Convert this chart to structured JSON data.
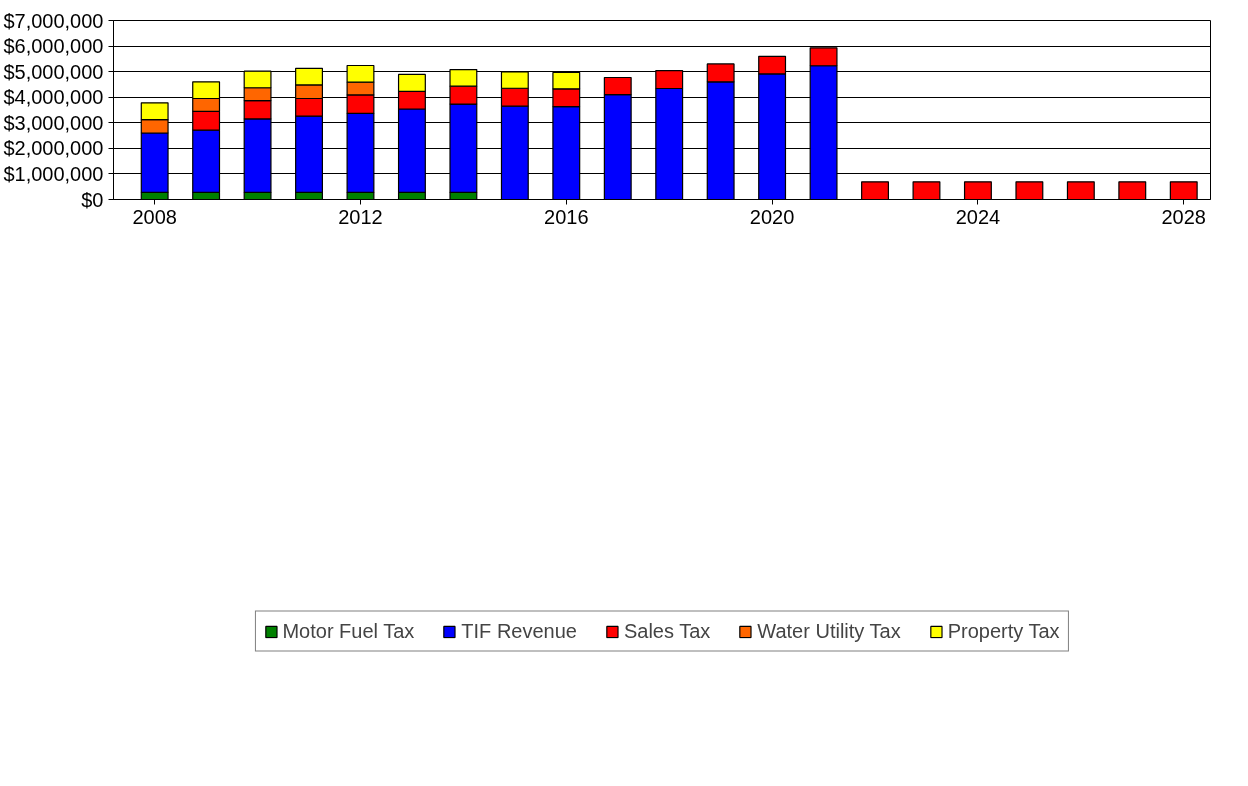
{
  "chart_data": {
    "type": "bar",
    "stacked": true,
    "categories": [
      "2008",
      null,
      null,
      null,
      "2012",
      null,
      null,
      null,
      "2016",
      null,
      null,
      null,
      "2020",
      null,
      null,
      null,
      "2024",
      null,
      null,
      null,
      "2028"
    ],
    "series": [
      {
        "name": "Motor Fuel Tax",
        "color": "#008000",
        "values": [
          280000,
          280000,
          280000,
          280000,
          280000,
          280000,
          280000,
          null,
          null,
          null,
          null,
          null,
          null,
          null,
          null,
          null,
          null,
          null,
          null,
          null,
          null
        ]
      },
      {
        "name": "TIF Revenue",
        "color": "#0000ff",
        "values": [
          2320000,
          2430000,
          2870000,
          2980000,
          3090000,
          3260000,
          3450000,
          3650000,
          3630000,
          4100000,
          4340000,
          4600000,
          4910000,
          5230000,
          null,
          null,
          null,
          null,
          null,
          null,
          null
        ]
      },
      {
        "name": "Sales Tax",
        "color": "#ff0000",
        "values": [
          null,
          740000,
          720000,
          690000,
          720000,
          690000,
          700000,
          700000,
          700000,
          670000,
          700000,
          700000,
          690000,
          700000,
          690000,
          690000,
          690000,
          690000,
          690000,
          690000,
          690000
        ]
      },
      {
        "name": "Water Utility Tax",
        "color": "#ff6600",
        "values": [
          520000,
          500000,
          500000,
          530000,
          500000,
          null,
          null,
          null,
          null,
          null,
          null,
          null,
          null,
          null,
          null,
          null,
          null,
          null,
          null,
          null,
          null
        ]
      },
      {
        "name": "Property Tax",
        "color": "#ffff00",
        "values": [
          660000,
          650000,
          650000,
          650000,
          650000,
          660000,
          650000,
          640000,
          640000,
          null,
          null,
          null,
          null,
          null,
          null,
          null,
          null,
          null,
          null,
          null,
          null
        ]
      }
    ],
    "ylim": [
      0,
      7000000
    ],
    "yticks": [
      {
        "value": 0,
        "label": "$0"
      },
      {
        "value": 1000000,
        "label": "$1,000,000"
      },
      {
        "value": 2000000,
        "label": "$2,000,000"
      },
      {
        "value": 3000000,
        "label": "$3,000,000"
      },
      {
        "value": 4000000,
        "label": "$4,000,000"
      },
      {
        "value": 5000000,
        "label": "$5,000,000"
      },
      {
        "value": 6000000,
        "label": "$6,000,000"
      },
      {
        "value": 7000000,
        "label": "$7,000,000"
      }
    ],
    "grid": "y",
    "legend": "bottom"
  }
}
